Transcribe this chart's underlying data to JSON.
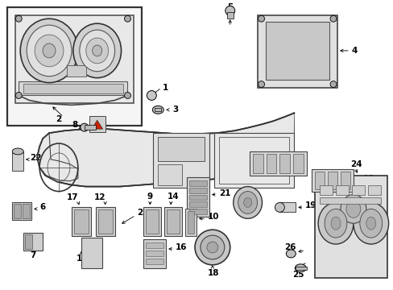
{
  "bg_color": "#ffffff",
  "figsize": [
    4.89,
    3.6
  ],
  "dpi": 100,
  "image_data": null
}
